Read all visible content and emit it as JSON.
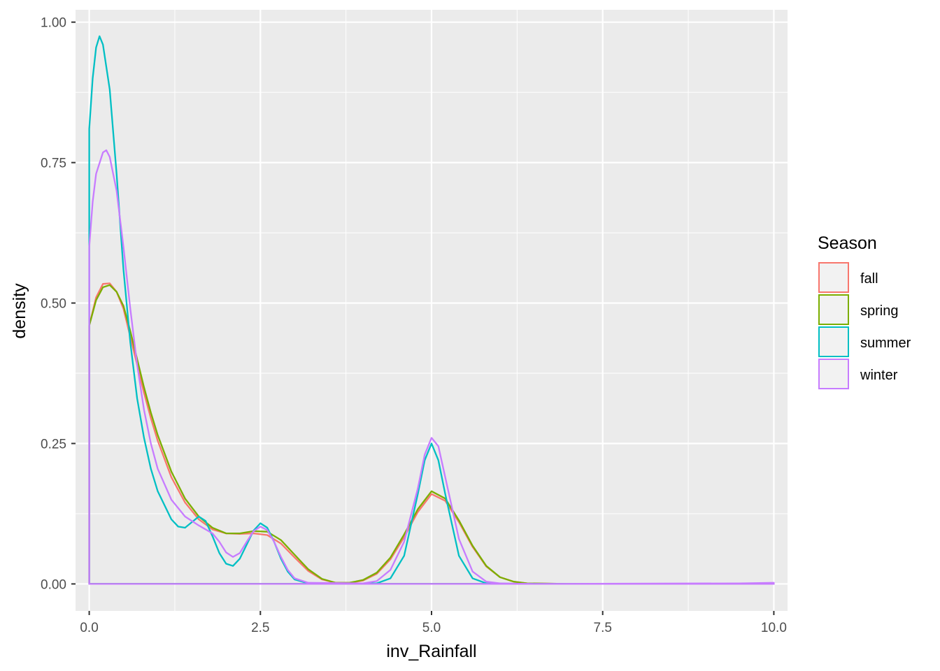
{
  "chart_data": {
    "type": "line",
    "title": "",
    "xlabel": "inv_Rainfall",
    "ylabel": "density",
    "xlim": [
      -0.2,
      10.2
    ],
    "ylim": [
      -0.048,
      1.022
    ],
    "x_ticks": [
      0,
      2.5,
      5,
      7.5,
      10
    ],
    "x_tick_labels": [
      "0.0",
      "2.5",
      "5.0",
      "7.5",
      "10.0"
    ],
    "y_ticks": [
      0,
      0.25,
      0.5,
      0.75,
      1
    ],
    "y_tick_labels": [
      "0.00",
      "0.25",
      "0.50",
      "0.75",
      "1.00"
    ],
    "grid": true,
    "legend": {
      "title": "Season",
      "position": "right"
    },
    "series": [
      {
        "name": "fall",
        "color": "#F8766D",
        "points": [
          [
            0,
            0.46
          ],
          [
            0.1,
            0.51
          ],
          [
            0.2,
            0.534
          ],
          [
            0.3,
            0.535
          ],
          [
            0.4,
            0.52
          ],
          [
            0.5,
            0.49
          ],
          [
            0.6,
            0.44
          ],
          [
            0.7,
            0.39
          ],
          [
            0.8,
            0.34
          ],
          [
            0.9,
            0.295
          ],
          [
            1.0,
            0.255
          ],
          [
            1.2,
            0.19
          ],
          [
            1.4,
            0.145
          ],
          [
            1.6,
            0.115
          ],
          [
            1.8,
            0.097
          ],
          [
            2.0,
            0.09
          ],
          [
            2.2,
            0.089
          ],
          [
            2.4,
            0.09
          ],
          [
            2.6,
            0.087
          ],
          [
            2.8,
            0.072
          ],
          [
            3.0,
            0.047
          ],
          [
            3.2,
            0.023
          ],
          [
            3.4,
            0.008
          ],
          [
            3.6,
            0.002
          ],
          [
            3.8,
            0.002
          ],
          [
            4.0,
            0.006
          ],
          [
            4.2,
            0.018
          ],
          [
            4.4,
            0.044
          ],
          [
            4.6,
            0.083
          ],
          [
            4.8,
            0.128
          ],
          [
            5.0,
            0.16
          ],
          [
            5.2,
            0.148
          ],
          [
            5.4,
            0.11
          ],
          [
            5.6,
            0.066
          ],
          [
            5.8,
            0.031
          ],
          [
            6.0,
            0.012
          ],
          [
            6.2,
            0.004
          ],
          [
            6.4,
            0.001
          ],
          [
            7.0,
            0
          ],
          [
            9.5,
            0
          ],
          [
            10.0,
            0
          ]
        ]
      },
      {
        "name": "spring",
        "color": "#7CAE00",
        "points": [
          [
            0,
            0.46
          ],
          [
            0.1,
            0.505
          ],
          [
            0.2,
            0.528
          ],
          [
            0.3,
            0.532
          ],
          [
            0.4,
            0.52
          ],
          [
            0.5,
            0.495
          ],
          [
            0.6,
            0.45
          ],
          [
            0.7,
            0.4
          ],
          [
            0.8,
            0.35
          ],
          [
            0.9,
            0.305
          ],
          [
            1.0,
            0.265
          ],
          [
            1.2,
            0.2
          ],
          [
            1.4,
            0.152
          ],
          [
            1.6,
            0.12
          ],
          [
            1.8,
            0.1
          ],
          [
            2.0,
            0.09
          ],
          [
            2.2,
            0.09
          ],
          [
            2.4,
            0.094
          ],
          [
            2.6,
            0.093
          ],
          [
            2.8,
            0.078
          ],
          [
            3.0,
            0.052
          ],
          [
            3.2,
            0.026
          ],
          [
            3.4,
            0.009
          ],
          [
            3.6,
            0.002
          ],
          [
            3.8,
            0.002
          ],
          [
            4.0,
            0.007
          ],
          [
            4.2,
            0.02
          ],
          [
            4.4,
            0.047
          ],
          [
            4.6,
            0.088
          ],
          [
            4.8,
            0.133
          ],
          [
            5.0,
            0.165
          ],
          [
            5.2,
            0.152
          ],
          [
            5.4,
            0.113
          ],
          [
            5.6,
            0.068
          ],
          [
            5.8,
            0.032
          ],
          [
            6.0,
            0.012
          ],
          [
            6.2,
            0.004
          ],
          [
            6.4,
            0.001
          ],
          [
            7.0,
            0
          ],
          [
            9.5,
            0
          ],
          [
            10.0,
            0
          ]
        ]
      },
      {
        "name": "summer",
        "color": "#00BFC4",
        "points": [
          [
            0,
            0.81
          ],
          [
            0.05,
            0.9
          ],
          [
            0.1,
            0.955
          ],
          [
            0.15,
            0.975
          ],
          [
            0.2,
            0.96
          ],
          [
            0.3,
            0.88
          ],
          [
            0.4,
            0.73
          ],
          [
            0.5,
            0.56
          ],
          [
            0.6,
            0.43
          ],
          [
            0.7,
            0.33
          ],
          [
            0.8,
            0.26
          ],
          [
            0.9,
            0.205
          ],
          [
            1.0,
            0.165
          ],
          [
            1.2,
            0.115
          ],
          [
            1.3,
            0.102
          ],
          [
            1.4,
            0.1
          ],
          [
            1.5,
            0.11
          ],
          [
            1.6,
            0.12
          ],
          [
            1.7,
            0.112
          ],
          [
            1.8,
            0.085
          ],
          [
            1.9,
            0.055
          ],
          [
            2.0,
            0.036
          ],
          [
            2.1,
            0.032
          ],
          [
            2.2,
            0.045
          ],
          [
            2.3,
            0.07
          ],
          [
            2.4,
            0.095
          ],
          [
            2.5,
            0.108
          ],
          [
            2.6,
            0.1
          ],
          [
            2.7,
            0.075
          ],
          [
            2.8,
            0.045
          ],
          [
            2.9,
            0.022
          ],
          [
            3.0,
            0.008
          ],
          [
            3.2,
            0.001
          ],
          [
            4.2,
            0.001
          ],
          [
            4.4,
            0.01
          ],
          [
            4.6,
            0.05
          ],
          [
            4.8,
            0.16
          ],
          [
            4.9,
            0.22
          ],
          [
            5.0,
            0.25
          ],
          [
            5.1,
            0.22
          ],
          [
            5.2,
            0.16
          ],
          [
            5.4,
            0.05
          ],
          [
            5.6,
            0.01
          ],
          [
            5.8,
            0.001
          ],
          [
            6.5,
            0
          ],
          [
            9.5,
            0
          ],
          [
            10.0,
            0
          ]
        ]
      },
      {
        "name": "winter",
        "color": "#C77CFF",
        "points": [
          [
            0,
            0.6
          ],
          [
            0.05,
            0.68
          ],
          [
            0.1,
            0.73
          ],
          [
            0.2,
            0.768
          ],
          [
            0.25,
            0.772
          ],
          [
            0.3,
            0.76
          ],
          [
            0.4,
            0.7
          ],
          [
            0.5,
            0.6
          ],
          [
            0.6,
            0.49
          ],
          [
            0.7,
            0.39
          ],
          [
            0.8,
            0.31
          ],
          [
            0.9,
            0.25
          ],
          [
            1.0,
            0.205
          ],
          [
            1.2,
            0.15
          ],
          [
            1.4,
            0.12
          ],
          [
            1.6,
            0.104
          ],
          [
            1.8,
            0.09
          ],
          [
            1.9,
            0.075
          ],
          [
            2.0,
            0.056
          ],
          [
            2.1,
            0.048
          ],
          [
            2.2,
            0.055
          ],
          [
            2.3,
            0.075
          ],
          [
            2.4,
            0.094
          ],
          [
            2.5,
            0.102
          ],
          [
            2.6,
            0.096
          ],
          [
            2.7,
            0.075
          ],
          [
            2.8,
            0.048
          ],
          [
            2.9,
            0.025
          ],
          [
            3.0,
            0.01
          ],
          [
            3.2,
            0.002
          ],
          [
            4.0,
            0.001
          ],
          [
            4.2,
            0.005
          ],
          [
            4.4,
            0.025
          ],
          [
            4.6,
            0.075
          ],
          [
            4.8,
            0.17
          ],
          [
            4.9,
            0.23
          ],
          [
            5.0,
            0.26
          ],
          [
            5.1,
            0.245
          ],
          [
            5.2,
            0.19
          ],
          [
            5.4,
            0.08
          ],
          [
            5.6,
            0.022
          ],
          [
            5.8,
            0.004
          ],
          [
            6.0,
            0.001
          ],
          [
            6.5,
            0
          ],
          [
            9.5,
            0.001
          ],
          [
            10.0,
            0.002
          ]
        ]
      }
    ]
  }
}
